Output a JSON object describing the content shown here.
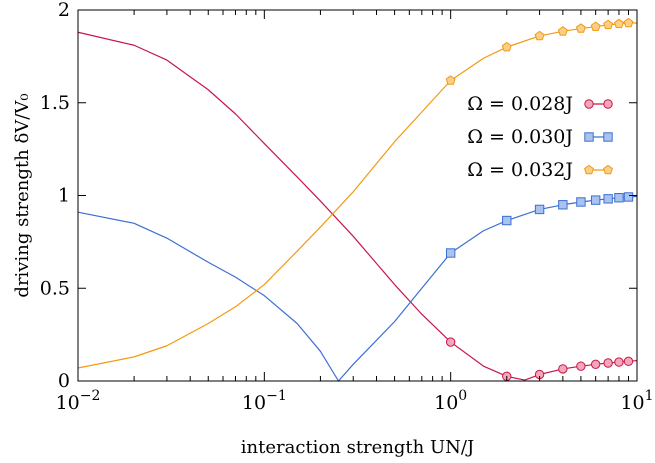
{
  "chart_data": {
    "type": "line",
    "xlabel": "interaction strength UN/J",
    "ylabel": "driving strength δV/V₀",
    "xscale": "log",
    "xlim": [
      0.01,
      10
    ],
    "ylim": [
      0,
      2
    ],
    "grid": false,
    "legend_position": "right",
    "x_ticks": [
      {
        "value": 0.01,
        "base": "10",
        "exp": "−2"
      },
      {
        "value": 0.1,
        "base": "10",
        "exp": "−1"
      },
      {
        "value": 1,
        "base": "10",
        "exp": "0"
      },
      {
        "value": 10,
        "base": "10",
        "exp": "1"
      }
    ],
    "y_ticks": [
      {
        "value": 0,
        "label": "0"
      },
      {
        "value": 0.5,
        "label": "0.5"
      },
      {
        "value": 1,
        "label": "1"
      },
      {
        "value": 1.5,
        "label": "1.5"
      },
      {
        "value": 2,
        "label": "2"
      }
    ],
    "series": [
      {
        "name": "Ω = 0.028J",
        "color": "#c8174a",
        "marker": "circle",
        "marker_fill": "#f2a7bb",
        "curve_x": [
          0.01,
          0.02,
          0.03,
          0.05,
          0.07,
          0.1,
          0.15,
          0.2,
          0.3,
          0.5,
          0.7,
          1.0,
          1.5,
          2.0,
          2.5,
          3,
          4,
          5,
          6,
          7,
          8,
          9,
          10
        ],
        "curve_y": [
          1.88,
          1.81,
          1.73,
          1.57,
          1.44,
          1.28,
          1.1,
          0.97,
          0.78,
          0.52,
          0.36,
          0.21,
          0.08,
          0.025,
          0.005,
          0.035,
          0.065,
          0.08,
          0.09,
          0.097,
          0.102,
          0.106,
          0.11
        ],
        "marker_x": [
          1,
          2,
          3,
          4,
          5,
          6,
          7,
          8,
          9
        ],
        "marker_y": [
          0.21,
          0.025,
          0.035,
          0.065,
          0.08,
          0.09,
          0.097,
          0.102,
          0.106
        ]
      },
      {
        "name": "Ω = 0.030J",
        "color": "#3c6fd4",
        "marker": "square",
        "marker_fill": "#a9c2ee",
        "curve_x": [
          0.01,
          0.02,
          0.03,
          0.05,
          0.07,
          0.1,
          0.15,
          0.2,
          0.25,
          0.3,
          0.5,
          0.7,
          1.0,
          1.5,
          2,
          3,
          4,
          5,
          6,
          7,
          8,
          9,
          10
        ],
        "curve_y": [
          0.91,
          0.85,
          0.77,
          0.64,
          0.56,
          0.46,
          0.31,
          0.16,
          0.0,
          0.09,
          0.32,
          0.5,
          0.69,
          0.81,
          0.865,
          0.925,
          0.95,
          0.965,
          0.975,
          0.982,
          0.988,
          0.992,
          0.995
        ],
        "marker_x": [
          1,
          2,
          3,
          4,
          5,
          6,
          7,
          8,
          9
        ],
        "marker_y": [
          0.69,
          0.865,
          0.925,
          0.95,
          0.965,
          0.975,
          0.982,
          0.988,
          0.992
        ]
      },
      {
        "name": "Ω = 0.032J",
        "color": "#f39a12",
        "marker": "pentagon",
        "marker_fill": "#f9cf8a",
        "curve_x": [
          0.01,
          0.02,
          0.03,
          0.05,
          0.07,
          0.1,
          0.15,
          0.2,
          0.3,
          0.5,
          0.7,
          1.0,
          1.5,
          2,
          3,
          4,
          5,
          6,
          7,
          8,
          9,
          10
        ],
        "curve_y": [
          0.07,
          0.13,
          0.19,
          0.31,
          0.4,
          0.52,
          0.7,
          0.83,
          1.02,
          1.29,
          1.45,
          1.62,
          1.74,
          1.8,
          1.86,
          1.885,
          1.9,
          1.91,
          1.92,
          1.925,
          1.93,
          1.93
        ],
        "marker_x": [
          1,
          2,
          3,
          4,
          5,
          6,
          7,
          8,
          9
        ],
        "marker_y": [
          1.62,
          1.8,
          1.86,
          1.885,
          1.9,
          1.91,
          1.92,
          1.925,
          1.93
        ]
      }
    ]
  }
}
